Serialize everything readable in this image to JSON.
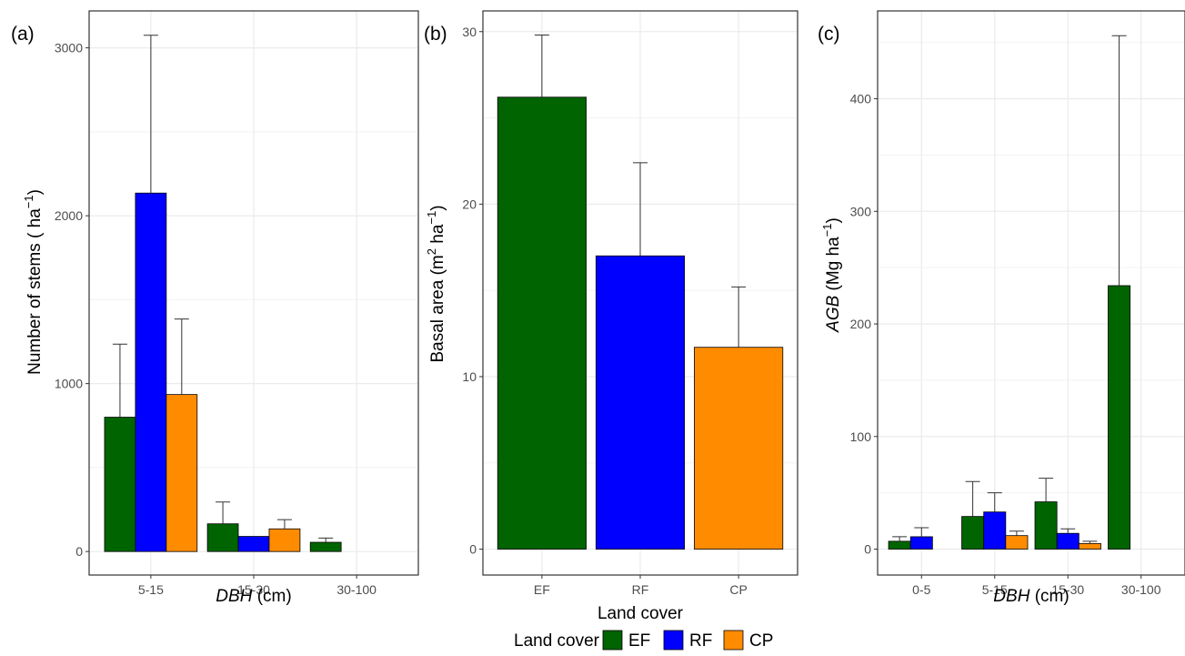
{
  "colors": {
    "EF": "#006400",
    "RF": "#0000ff",
    "CP": "#ff8c00"
  },
  "legend": {
    "title": "Land cover",
    "items": [
      "EF",
      "RF",
      "CP"
    ]
  },
  "chart_data": [
    {
      "panel": "(a)",
      "type": "bar",
      "xlabel_italic": "DBH",
      "xlabel_rest": " (cm)",
      "ylabel_main": "Number of stems ( ha",
      "ylabel_sup": "−1",
      "ylabel_close": ")",
      "ylim": [
        -140,
        3220
      ],
      "yticks": [
        0,
        1000,
        2000,
        3000
      ],
      "ytick_labels": [
        "0",
        "1000",
        "2000",
        "3000"
      ],
      "categories": [
        "5-15",
        "15-30",
        "30-100"
      ],
      "series": [
        {
          "name": "EF",
          "values": [
            800,
            165,
            55
          ],
          "error": [
            1235,
            295,
            80
          ]
        },
        {
          "name": "RF",
          "values": [
            2135,
            90,
            null
          ],
          "error": [
            3075,
            null,
            null
          ]
        },
        {
          "name": "CP",
          "values": [
            935,
            135,
            null
          ],
          "error": [
            1385,
            190,
            null
          ]
        }
      ]
    },
    {
      "panel": "(b)",
      "type": "bar",
      "xlabel": "Land cover",
      "ylabel_main": "Basal area (m",
      "ylabel_sup1": "2",
      "ylabel_mid": " ha",
      "ylabel_sup2": "−1",
      "ylabel_close": ")",
      "ylim": [
        -1.5,
        31.2
      ],
      "yticks": [
        0,
        10,
        20,
        30
      ],
      "ytick_labels": [
        "0",
        "10",
        "20",
        "30"
      ],
      "categories": [
        "EF",
        "RF",
        "CP"
      ],
      "values": [
        26.2,
        17.0,
        11.7
      ],
      "error": [
        29.8,
        22.4,
        15.2
      ]
    },
    {
      "panel": "(c)",
      "type": "bar",
      "xlabel_italic": "DBH",
      "xlabel_rest": " (cm)",
      "ylabel_italic": "AGB",
      "ylabel_main": " (Mg ha",
      "ylabel_sup": "−1",
      "ylabel_close": ")",
      "ylim": [
        -23,
        478
      ],
      "yticks": [
        0,
        100,
        200,
        300,
        400
      ],
      "ytick_labels": [
        "0",
        "100",
        "200",
        "300",
        "400"
      ],
      "categories": [
        "0-5",
        "5-15",
        "15-30",
        "30-100"
      ],
      "series": [
        {
          "name": "EF",
          "values": [
            7,
            29,
            42,
            234
          ],
          "error": [
            11,
            60,
            63,
            456
          ]
        },
        {
          "name": "RF",
          "values": [
            11,
            33,
            14,
            null
          ],
          "error": [
            19,
            50,
            18,
            null
          ]
        },
        {
          "name": "CP",
          "values": [
            null,
            12,
            5,
            null
          ],
          "error": [
            null,
            16,
            7,
            null
          ]
        }
      ]
    }
  ]
}
